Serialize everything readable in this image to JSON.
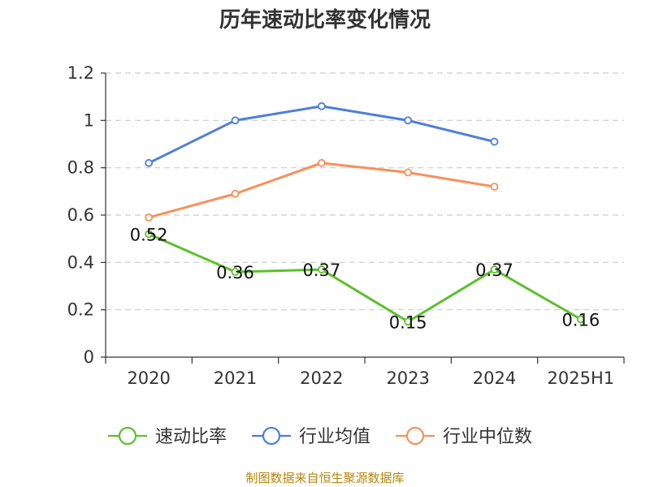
{
  "chart_data": {
    "type": "line",
    "title": "历年速动比率变化情况",
    "categories": [
      "2020",
      "2021",
      "2022",
      "2023",
      "2024",
      "2025H1"
    ],
    "y_ticks": [
      "0",
      "0.2",
      "0.4",
      "0.6",
      "0.8",
      "1",
      "1.2"
    ],
    "ylim": [
      0,
      1.2
    ],
    "grid": true,
    "legend_position": "bottom",
    "series": [
      {
        "name": "速动比率",
        "color": "#5cc02c",
        "values": [
          0.52,
          0.36,
          0.37,
          0.15,
          0.37,
          0.16
        ],
        "labels": [
          "0.52",
          "0.36",
          "0.37",
          "0.15",
          "0.37",
          "0.16"
        ]
      },
      {
        "name": "行业均值",
        "color": "#4e7fd8",
        "values": [
          0.82,
          1.0,
          1.06,
          1.0,
          0.91,
          null
        ]
      },
      {
        "name": "行业中位数",
        "color": "#f5915c",
        "values": [
          0.59,
          0.69,
          0.82,
          0.78,
          0.72,
          null
        ]
      }
    ],
    "source": "制图数据来自恒生聚源数据库"
  }
}
